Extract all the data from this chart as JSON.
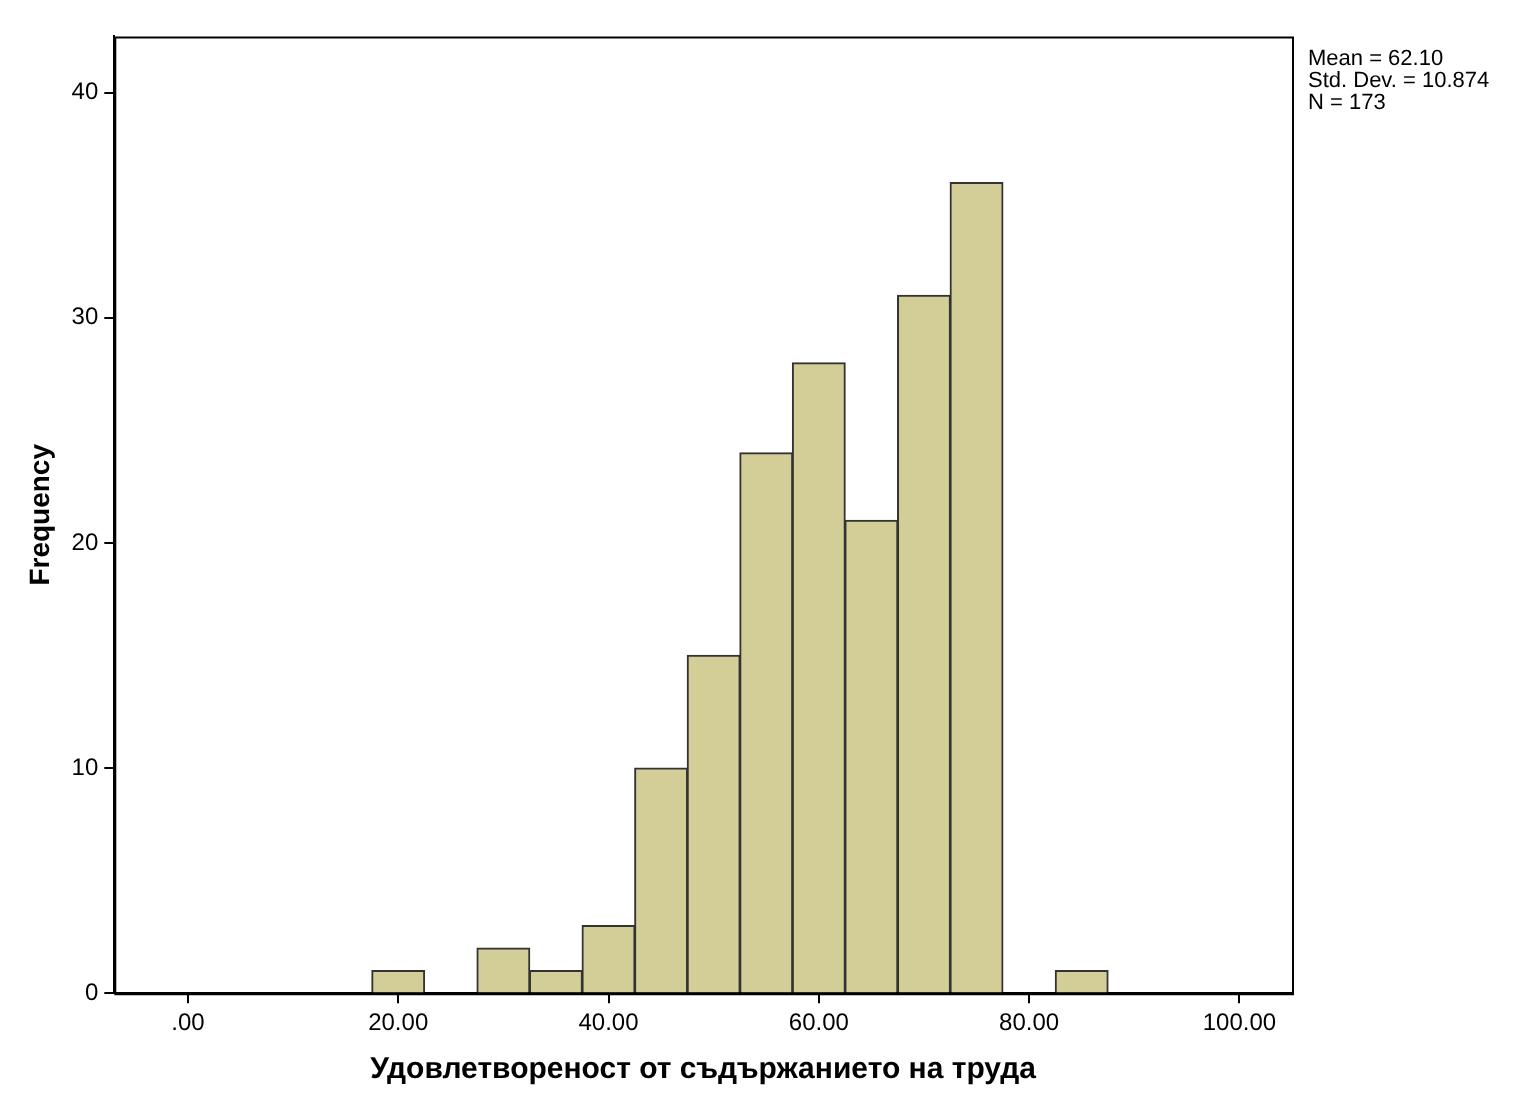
{
  "chart_data": {
    "type": "histogram",
    "xlabel": "Удовлетвореност от съдържанието на труда",
    "ylabel": "Frequency",
    "bins": [
      17.5,
      22.5,
      27.5,
      32.5,
      37.5,
      42.5,
      47.5,
      52.5,
      57.5,
      62.5,
      67.5,
      72.5,
      77.5,
      82.5,
      87.5
    ],
    "values": [
      1,
      0,
      2,
      1,
      3,
      10,
      15,
      24,
      28,
      21,
      31,
      36,
      0,
      1
    ],
    "color": "#d3ce97",
    "xlim": [
      -7,
      105
    ],
    "xticks": [
      {
        "value": 0,
        "label": ".00"
      },
      {
        "value": 20,
        "label": "20.00"
      },
      {
        "value": 40,
        "label": "40.00"
      },
      {
        "value": 60,
        "label": "60.00"
      },
      {
        "value": 80,
        "label": "80.00"
      },
      {
        "value": 100,
        "label": "100.00"
      }
    ],
    "ylim": [
      0,
      42.5
    ],
    "yticks": [
      0,
      10,
      20,
      30,
      40
    ],
    "grid": false,
    "legend": false,
    "annotations": [
      "Mean = 62.10",
      "Std. Dev. = 10.874",
      "N = 173"
    ]
  }
}
